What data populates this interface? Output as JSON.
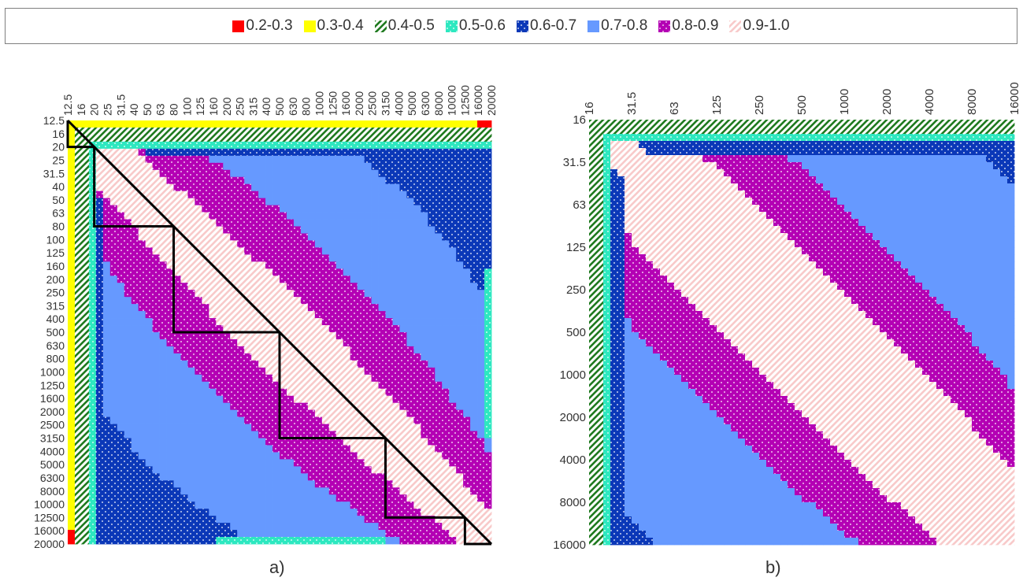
{
  "legend": {
    "items": [
      {
        "label": "0.2-0.3",
        "color": "#ff0000",
        "pattern": "solid"
      },
      {
        "label": "0.3-0.4",
        "color": "#ffff00",
        "pattern": "solid"
      },
      {
        "label": "0.4-0.5",
        "color": "#1f7a1f",
        "pattern": "diagonal-stripes"
      },
      {
        "label": "0.5-0.6",
        "color": "#2de8c0",
        "pattern": "dots"
      },
      {
        "label": "0.6-0.7",
        "color": "#0b38b8",
        "pattern": "dots"
      },
      {
        "label": "0.7-0.8",
        "color": "#6699ff",
        "pattern": "solid"
      },
      {
        "label": "0.8-0.9",
        "color": "#b400b4",
        "pattern": "dots"
      },
      {
        "label": "0.9-1.0",
        "color": "#f8caca",
        "pattern": "diagonal-stripes"
      }
    ]
  },
  "chart_data": [
    {
      "type": "heatmap",
      "panel_label": "a)",
      "x_tick_labels": [
        "12.5",
        "16",
        "20",
        "25",
        "31.5",
        "40",
        "50",
        "63",
        "80",
        "100",
        "125",
        "160",
        "200",
        "250",
        "315",
        "400",
        "500",
        "630",
        "800",
        "1000",
        "1250",
        "1600",
        "2000",
        "2500",
        "3150",
        "4000",
        "5000",
        "6300",
        "8000",
        "10000",
        "12500",
        "16000",
        "20000"
      ],
      "y_tick_labels": [
        "12.5",
        "16",
        "20",
        "25",
        "31.5",
        "40",
        "50",
        "63",
        "80",
        "100",
        "125",
        "160",
        "200",
        "250",
        "315",
        "400",
        "500",
        "630",
        "800",
        "1000",
        "1250",
        "1600",
        "2000",
        "2500",
        "3150",
        "4000",
        "5000",
        "6300",
        "8000",
        "10000",
        "12500",
        "16000",
        "20000"
      ],
      "value_ranges": [
        "0.2-0.3",
        "0.3-0.4",
        "0.4-0.5",
        "0.5-0.6",
        "0.6-0.7",
        "0.7-0.8",
        "0.8-0.9",
        "0.9-1.0"
      ],
      "diagonal_value": 1.0,
      "outline_triangles": [
        {
          "from": "12.5",
          "to": "20"
        },
        {
          "from": "20",
          "to": "80"
        },
        {
          "from": "80",
          "to": "500"
        },
        {
          "from": "500",
          "to": "3150"
        },
        {
          "from": "3150",
          "to": "12500"
        },
        {
          "from": "12500",
          "to": "20000"
        }
      ]
    },
    {
      "type": "heatmap",
      "panel_label": "b)",
      "x_tick_labels": [
        "16",
        "31.5",
        "63",
        "125",
        "250",
        "500",
        "1000",
        "2000",
        "4000",
        "8000",
        "16000"
      ],
      "y_tick_labels": [
        "16",
        "31.5",
        "63",
        "125",
        "250",
        "500",
        "1000",
        "2000",
        "4000",
        "8000",
        "16000"
      ],
      "value_ranges": [
        "0.2-0.3",
        "0.3-0.4",
        "0.4-0.5",
        "0.5-0.6",
        "0.6-0.7",
        "0.7-0.8",
        "0.8-0.9",
        "0.9-1.0"
      ],
      "diagonal_value": 1.0
    }
  ]
}
